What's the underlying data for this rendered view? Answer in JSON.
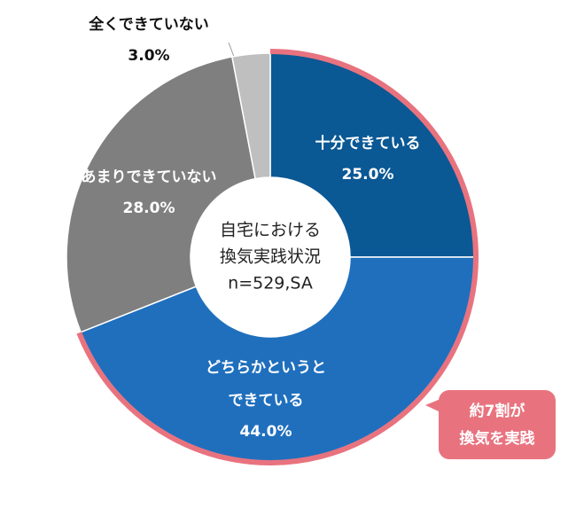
{
  "chart_data": {
    "type": "donut",
    "center_text": [
      "自宅における",
      "換気実践状況",
      "n=529,SA"
    ],
    "categories": [
      [
        "十分できている"
      ],
      [
        "どちらかというと",
        "できている"
      ],
      [
        "あまりできていない"
      ],
      [
        "全くできていない"
      ]
    ],
    "values": [
      25,
      44,
      28,
      3
    ],
    "value_labels": [
      "25.0%",
      "44.0%",
      "28.0%",
      "3.0%"
    ],
    "colors": [
      "#0a5894",
      "#1f6fbd",
      "#7f7f7f",
      "#bfbfbf"
    ],
    "callout": [
      "約7割が",
      "換気を実践"
    ]
  }
}
